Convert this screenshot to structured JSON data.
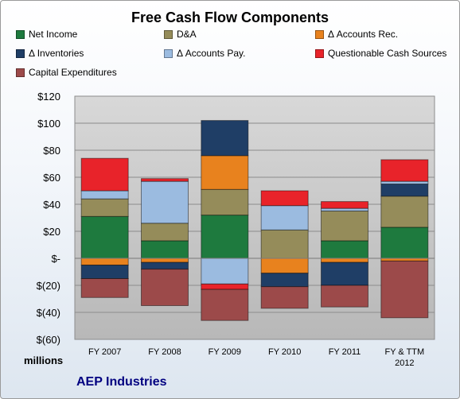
{
  "chart_data": {
    "type": "bar",
    "stacked": true,
    "title": "Free Cash Flow Components",
    "ylabel": "millions",
    "ylim": [
      -60,
      120
    ],
    "yticks": [
      120,
      100,
      80,
      60,
      40,
      20,
      0,
      -20,
      -40,
      -60
    ],
    "ytick_labels": [
      "$120",
      "$100",
      "$80",
      "$60",
      "$40",
      "$20",
      "$-",
      "$(20)",
      "$(40)",
      "$(60)"
    ],
    "grid": true,
    "legend_position": "top",
    "categories": [
      "FY 2007",
      "FY 2008",
      "FY 2009",
      "FY 2010",
      "FY 2011",
      "FY & TTM 2012"
    ],
    "category_lines": [
      [
        "FY 2007"
      ],
      [
        "FY 2008"
      ],
      [
        "FY 2009"
      ],
      [
        "FY 2010"
      ],
      [
        "FY 2011"
      ],
      [
        "FY & TTM",
        "2012"
      ]
    ],
    "series": [
      {
        "name": "Net Income",
        "color": "#1e7a3e",
        "values": [
          31,
          13,
          32,
          0,
          13,
          23
        ]
      },
      {
        "name": "D&A",
        "color": "#958c5a",
        "values": [
          13,
          13,
          19,
          21,
          22,
          23
        ]
      },
      {
        "name": "Δ Accounts Rec.",
        "color": "#e8821e",
        "values": [
          -5,
          -3,
          25,
          -11,
          -3,
          -2
        ]
      },
      {
        "name": "Δ Inventories",
        "color": "#1f3e66",
        "values": [
          -10,
          -5,
          26,
          -10,
          -17,
          9
        ]
      },
      {
        "name": "Δ Accounts Pay.",
        "color": "#9bbbe0",
        "values": [
          6,
          31,
          -19,
          18,
          2,
          2
        ]
      },
      {
        "name": "Questionable Cash Sources",
        "color": "#e8232a",
        "values": [
          24,
          2,
          -4,
          11,
          5,
          16
        ]
      },
      {
        "name": "Capital Expenditures",
        "color": "#9c4a4a",
        "values": [
          -14,
          -27,
          -23,
          -16,
          -16,
          -42
        ]
      }
    ]
  },
  "footer": {
    "units": "millions",
    "company": "AEP Industries"
  }
}
